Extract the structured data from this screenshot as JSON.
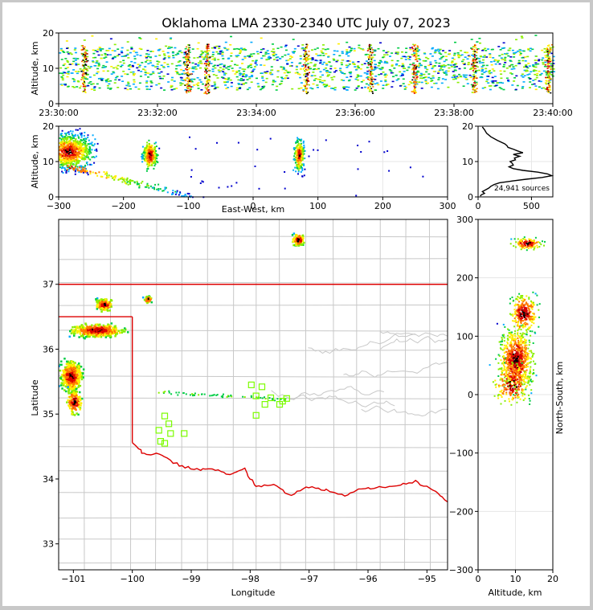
{
  "title": "Oklahoma LMA 2330-2340 UTC July 07, 2023",
  "colors": {
    "density_scale": [
      "#0000cc",
      "#00aaff",
      "#00cc44",
      "#88ee00",
      "#ffee00",
      "#ff7700",
      "#dd0000",
      "#000000"
    ],
    "state_border": "#dd0000",
    "county_lines": "#c8c8c8",
    "station_marker": "#7cfc00",
    "grid": "#e6e6e6"
  },
  "icons": {
    "station": "hollow-square-marker"
  },
  "chart_data": [
    {
      "id": "time-height",
      "type": "heatmap",
      "xlabel": "",
      "ylabel": "Altitude, km",
      "xticks": [
        "23:30:00",
        "23:32:00",
        "23:34:00",
        "23:36:00",
        "23:38:00",
        "23:40:00"
      ],
      "xlim_minutes": [
        0,
        10
      ],
      "ylim": [
        0,
        20
      ],
      "yticks": [
        0,
        10,
        20
      ],
      "dense_times_min": [
        0.5,
        2.6,
        3.0,
        5.0,
        6.3,
        7.2,
        8.4,
        9.9
      ],
      "layer_km": [
        4,
        16
      ]
    },
    {
      "id": "ew-height",
      "type": "heatmap",
      "xlabel": "East-West, km",
      "ylabel": "Altitude, km",
      "xlim": [
        -300,
        300
      ],
      "xticks": [
        -300,
        -200,
        -100,
        0,
        100,
        200,
        300
      ],
      "ylim": [
        0,
        20
      ],
      "yticks": [
        0,
        10,
        20
      ],
      "storms": [
        {
          "x": [
            -295,
            -200
          ],
          "alt": [
            3,
            20
          ],
          "core_x": -285,
          "core_alt": 13
        },
        {
          "x": [
            -175,
            -145
          ],
          "alt": [
            6,
            17
          ],
          "core_x": -160,
          "core_alt": 12
        },
        {
          "x": [
            60,
            80
          ],
          "alt": [
            5,
            20
          ],
          "core_x": 70,
          "core_alt": 12
        }
      ]
    },
    {
      "id": "altitude-histogram",
      "type": "line",
      "xlabel": "",
      "ylabel": "",
      "xlim": [
        0,
        700
      ],
      "xticks": [
        0,
        500
      ],
      "ylim": [
        0,
        20
      ],
      "yticks": [
        0,
        10,
        20
      ],
      "annotation": "24,941 sources",
      "series": [
        {
          "alt": [
            0.2,
            0.6,
            1.0,
            1.5,
            2,
            2.5,
            3,
            3.5,
            4,
            4.5,
            5,
            5.5,
            6,
            6.5,
            7,
            7.5,
            8,
            8.5,
            9,
            9.5,
            10,
            10.5,
            11,
            11.5,
            12,
            12.5,
            13,
            13.5,
            14,
            14.5,
            15,
            16,
            17,
            18,
            19,
            19.8
          ],
          "count": [
            20,
            30,
            60,
            40,
            70,
            100,
            120,
            150,
            200,
            320,
            450,
            600,
            690,
            650,
            560,
            420,
            330,
            290,
            330,
            320,
            300,
            350,
            340,
            390,
            330,
            420,
            370,
            330,
            280,
            270,
            250,
            180,
            120,
            80,
            60,
            40
          ]
        }
      ]
    },
    {
      "id": "plan-view",
      "type": "scatter",
      "xlabel": "Longitude",
      "ylabel": "Latitude",
      "xlim": [
        -101.25,
        -94.65
      ],
      "xticks": [
        -101,
        -100,
        -99,
        -98,
        -97,
        -96,
        -95
      ],
      "ylim": [
        32.6,
        38.0
      ],
      "yticks": [
        33,
        34,
        35,
        36,
        37
      ],
      "stations": [
        {
          "lon": -99.55,
          "lat": 34.75
        },
        {
          "lon": -99.45,
          "lat": 34.97
        },
        {
          "lon": -99.38,
          "lat": 34.85
        },
        {
          "lon": -99.35,
          "lat": 34.7
        },
        {
          "lon": -99.45,
          "lat": 34.55
        },
        {
          "lon": -99.52,
          "lat": 34.58
        },
        {
          "lon": -99.12,
          "lat": 34.7
        },
        {
          "lon": -97.98,
          "lat": 35.45
        },
        {
          "lon": -97.8,
          "lat": 35.42
        },
        {
          "lon": -97.9,
          "lat": 35.28
        },
        {
          "lon": -97.75,
          "lat": 35.15
        },
        {
          "lon": -97.65,
          "lat": 35.25
        },
        {
          "lon": -97.5,
          "lat": 35.15
        },
        {
          "lon": -97.45,
          "lat": 35.2
        },
        {
          "lon": -97.38,
          "lat": 35.24
        },
        {
          "lon": -97.9,
          "lat": 34.98
        }
      ]
    },
    {
      "id": "ns-height",
      "type": "heatmap",
      "xlabel": "Altitude, km",
      "ylabel": "North-South, km",
      "xlim": [
        0,
        20
      ],
      "xticks": [
        0,
        10,
        20
      ],
      "ylim": [
        -300,
        300
      ],
      "yticks": [
        -300,
        -200,
        -100,
        0,
        100,
        200,
        300
      ]
    }
  ]
}
